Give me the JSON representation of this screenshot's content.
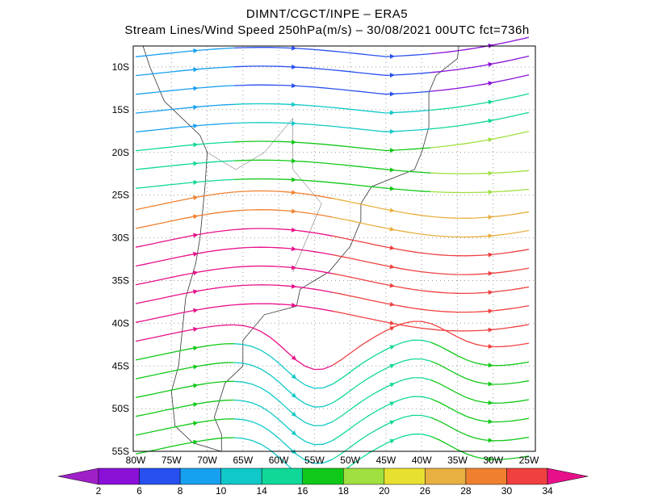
{
  "header": {
    "title_line1": "DIMNT/CGCT/INPE –  ERA5",
    "title_line2": "Stream Lines/Wind Speed 250hPa(m/s) –  30/08/2021 00UTC fct=736h"
  },
  "map": {
    "lat_labels": [
      "10S",
      "15S",
      "20S",
      "25S",
      "30S",
      "35S",
      "40S",
      "45S",
      "50S",
      "55S"
    ],
    "lon_labels": [
      "80W",
      "75W",
      "70W",
      "65W",
      "60W",
      "55W",
      "50W",
      "45W",
      "40W",
      "35W",
      "30W",
      "25W"
    ]
  },
  "colorbar": {
    "labels": [
      "2",
      "6",
      "8",
      "10",
      "14",
      "16",
      "18",
      "20",
      "26",
      "28",
      "30",
      "34"
    ],
    "colors": [
      "#a020c8",
      "#8a10d8",
      "#2850f0",
      "#18a0f0",
      "#10c8c8",
      "#10d898",
      "#10c818",
      "#a0e040",
      "#e8e030",
      "#e8b040",
      "#f08030",
      "#f04040",
      "#e8108a"
    ]
  }
}
